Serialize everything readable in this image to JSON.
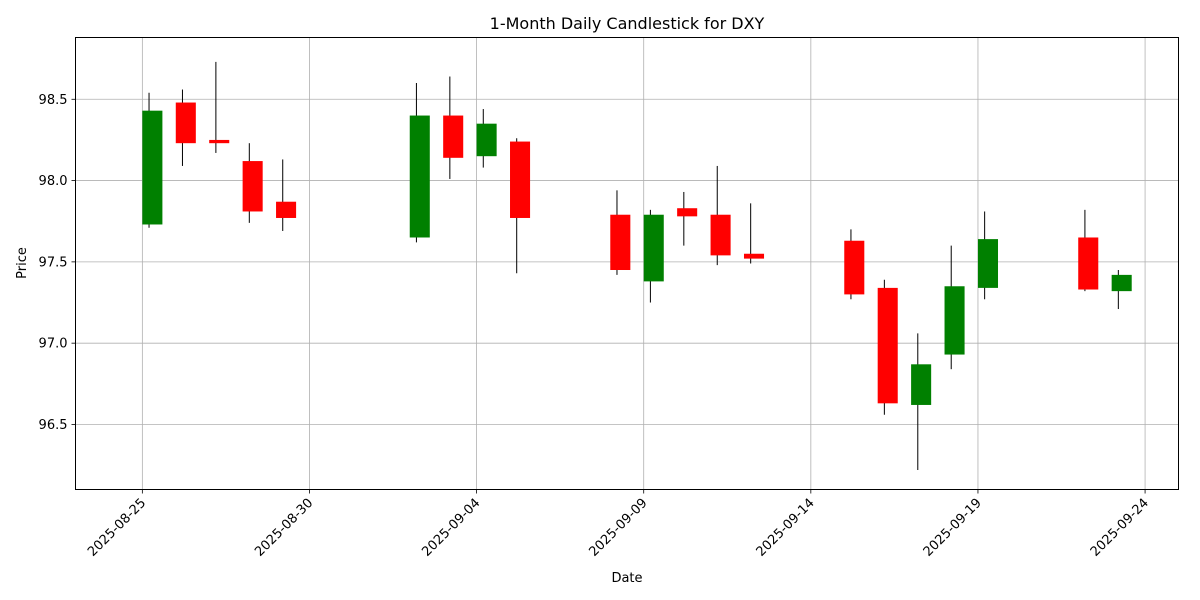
{
  "chart_data": {
    "type": "candlestick",
    "title": "1-Month Daily Candlestick for DXY",
    "xlabel": "Date",
    "ylabel": "Price",
    "x_ticks": [
      "2025-08-25",
      "2025-08-30",
      "2025-09-04",
      "2025-09-09",
      "2025-09-14",
      "2025-09-19",
      "2025-09-24"
    ],
    "y_ticks": [
      "96.5",
      "97.0",
      "97.5",
      "98.0",
      "98.5"
    ],
    "xlim": [
      "2025-08-23",
      "2025-09-25"
    ],
    "ylim": [
      96.1,
      98.88
    ],
    "grid": true,
    "colors": {
      "up": "#008000",
      "down": "#ff0000",
      "wick": "#000000"
    },
    "candles": [
      {
        "date": "2025-08-25",
        "open": 97.73,
        "high": 98.54,
        "low": 97.71,
        "close": 98.43
      },
      {
        "date": "2025-08-26",
        "open": 98.48,
        "high": 98.56,
        "low": 98.09,
        "close": 98.23
      },
      {
        "date": "2025-08-27",
        "open": 98.25,
        "high": 98.73,
        "low": 98.17,
        "close": 98.23
      },
      {
        "date": "2025-08-28",
        "open": 98.12,
        "high": 98.23,
        "low": 97.74,
        "close": 97.81
      },
      {
        "date": "2025-08-29",
        "open": 97.87,
        "high": 98.13,
        "low": 97.69,
        "close": 97.77
      },
      {
        "date": "2025-09-02",
        "open": 97.65,
        "high": 98.6,
        "low": 97.62,
        "close": 98.4
      },
      {
        "date": "2025-09-03",
        "open": 98.4,
        "high": 98.64,
        "low": 98.01,
        "close": 98.14
      },
      {
        "date": "2025-09-04",
        "open": 98.15,
        "high": 98.44,
        "low": 98.08,
        "close": 98.35
      },
      {
        "date": "2025-09-05",
        "open": 98.24,
        "high": 98.26,
        "low": 97.43,
        "close": 97.77
      },
      {
        "date": "2025-09-08",
        "open": 97.79,
        "high": 97.94,
        "low": 97.42,
        "close": 97.45
      },
      {
        "date": "2025-09-09",
        "open": 97.38,
        "high": 97.82,
        "low": 97.25,
        "close": 97.79
      },
      {
        "date": "2025-09-10",
        "open": 97.83,
        "high": 97.93,
        "low": 97.6,
        "close": 97.78
      },
      {
        "date": "2025-09-11",
        "open": 97.79,
        "high": 98.09,
        "low": 97.48,
        "close": 97.54
      },
      {
        "date": "2025-09-12",
        "open": 97.55,
        "high": 97.86,
        "low": 97.49,
        "close": 97.52
      },
      {
        "date": "2025-09-15",
        "open": 97.63,
        "high": 97.7,
        "low": 97.27,
        "close": 97.3
      },
      {
        "date": "2025-09-16",
        "open": 97.34,
        "high": 97.39,
        "low": 96.56,
        "close": 96.63
      },
      {
        "date": "2025-09-17",
        "open": 96.62,
        "high": 97.06,
        "low": 96.22,
        "close": 96.87
      },
      {
        "date": "2025-09-18",
        "open": 96.93,
        "high": 97.6,
        "low": 96.84,
        "close": 97.35
      },
      {
        "date": "2025-09-19",
        "open": 97.34,
        "high": 97.81,
        "low": 97.27,
        "close": 97.64
      },
      {
        "date": "2025-09-22",
        "open": 97.65,
        "high": 97.82,
        "low": 97.32,
        "close": 97.33
      },
      {
        "date": "2025-09-23",
        "open": 97.32,
        "high": 97.45,
        "low": 97.21,
        "close": 97.42
      }
    ]
  }
}
